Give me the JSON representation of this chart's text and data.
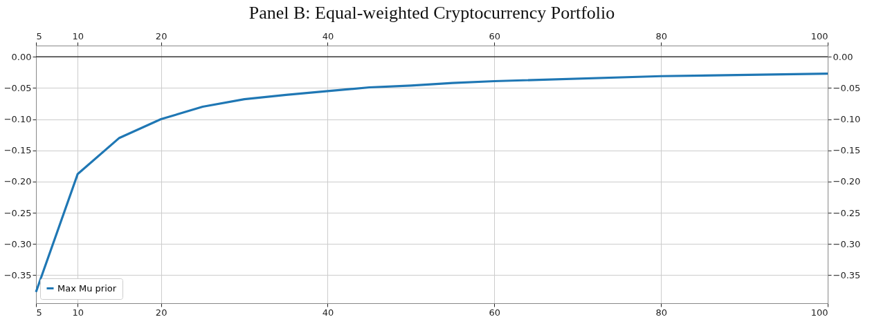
{
  "chart_data": {
    "type": "line",
    "title": "Panel B: Equal-weighted Cryptocurrency Portfolio",
    "x": [
      5,
      10,
      15,
      20,
      25,
      30,
      35,
      40,
      45,
      50,
      55,
      60,
      80,
      100
    ],
    "series": [
      {
        "name": "Max Mu prior",
        "color": "#1f77b4",
        "values": [
          -0.377,
          -0.188,
          -0.13,
          -0.1,
          -0.08,
          -0.068,
          -0.061,
          -0.055,
          -0.049,
          -0.046,
          -0.042,
          -0.039,
          -0.031,
          -0.027
        ]
      }
    ],
    "xlim": [
      5,
      100
    ],
    "xticks": [
      5,
      10,
      20,
      40,
      60,
      80,
      100
    ],
    "x2lim": [
      5,
      100
    ],
    "x2ticks": [
      5,
      10,
      20,
      40,
      60,
      80,
      100
    ],
    "ylim": [
      -0.395,
      0.018
    ],
    "yticks": [
      {
        "value": 0,
        "label": "0.00"
      },
      {
        "value": -0.05,
        "label": "−0.05"
      },
      {
        "value": -0.1,
        "label": "−0.10"
      },
      {
        "value": -0.15,
        "label": "−0.15"
      },
      {
        "value": -0.2,
        "label": "−0.20"
      },
      {
        "value": -0.25,
        "label": "−0.25"
      },
      {
        "value": -0.3,
        "label": "−0.30"
      },
      {
        "value": -0.35,
        "label": "−0.35"
      }
    ],
    "y2lim": [
      -0.395,
      0.018
    ],
    "y2ticks": [
      {
        "value": 0,
        "label": "0.00"
      },
      {
        "value": -0.05,
        "label": "−0.05"
      },
      {
        "value": -0.1,
        "label": "−0.10"
      },
      {
        "value": -0.15,
        "label": "−0.15"
      },
      {
        "value": -0.2,
        "label": "−0.20"
      },
      {
        "value": -0.25,
        "label": "−0.25"
      },
      {
        "value": -0.3,
        "label": "−0.30"
      },
      {
        "value": -0.35,
        "label": "−0.35"
      }
    ],
    "ref_lines": [
      {
        "axis": "y",
        "value": 0,
        "color": "#333333"
      }
    ],
    "grid": true,
    "legend": "bottom left",
    "line_style": "solid",
    "marker": "none"
  }
}
